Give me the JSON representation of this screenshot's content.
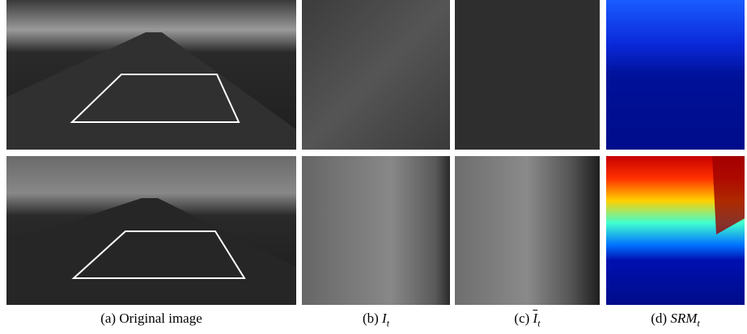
{
  "captions": [
    {
      "label": "(a)",
      "text": "Original image"
    },
    {
      "label": "(b)",
      "symbol": "I",
      "subscript": "t"
    },
    {
      "label": "(c)",
      "symbol": "I",
      "subscript": "t"
    },
    {
      "label": "(d)",
      "symbol": "SRM",
      "subscript": "t"
    }
  ]
}
